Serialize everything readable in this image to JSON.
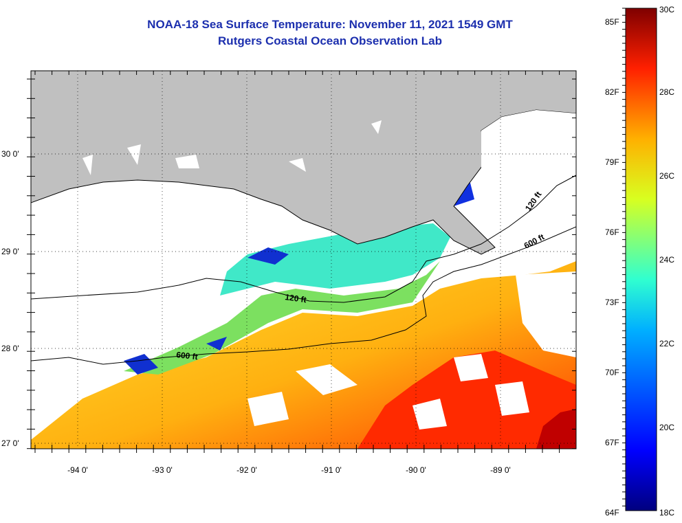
{
  "header": {
    "title": "NOAA-18 Sea Surface Temperature:  November 11, 2021 1549 GMT",
    "subtitle": "Rutgers Coastal Ocean Observation Lab"
  },
  "map": {
    "longitude_labels": [
      "-94 0'",
      "-93 0'",
      "-92 0'",
      "-91 0'",
      "-90 0'",
      "-89 0'"
    ],
    "latitude_labels": [
      "30 0'",
      "29 0'",
      "28 0'",
      "27 0'"
    ],
    "contours": [
      {
        "name": "120 ft",
        "label_a": "120 ft",
        "label_b": "120 ft"
      },
      {
        "name": "600 ft",
        "label_a": "600 ft",
        "label_b": "600 ft"
      }
    ],
    "colors": {
      "land": "#c0c0c0",
      "no_data": "#ffffff"
    }
  },
  "colorbar": {
    "fahrenheit_labels": [
      "85F",
      "82F",
      "79F",
      "76F",
      "73F",
      "70F",
      "67F",
      "64F"
    ],
    "celsius_labels": [
      "30C",
      "28C",
      "26C",
      "24C",
      "22C",
      "20C",
      "18C"
    ],
    "range_celsius": [
      18,
      30
    ]
  }
}
